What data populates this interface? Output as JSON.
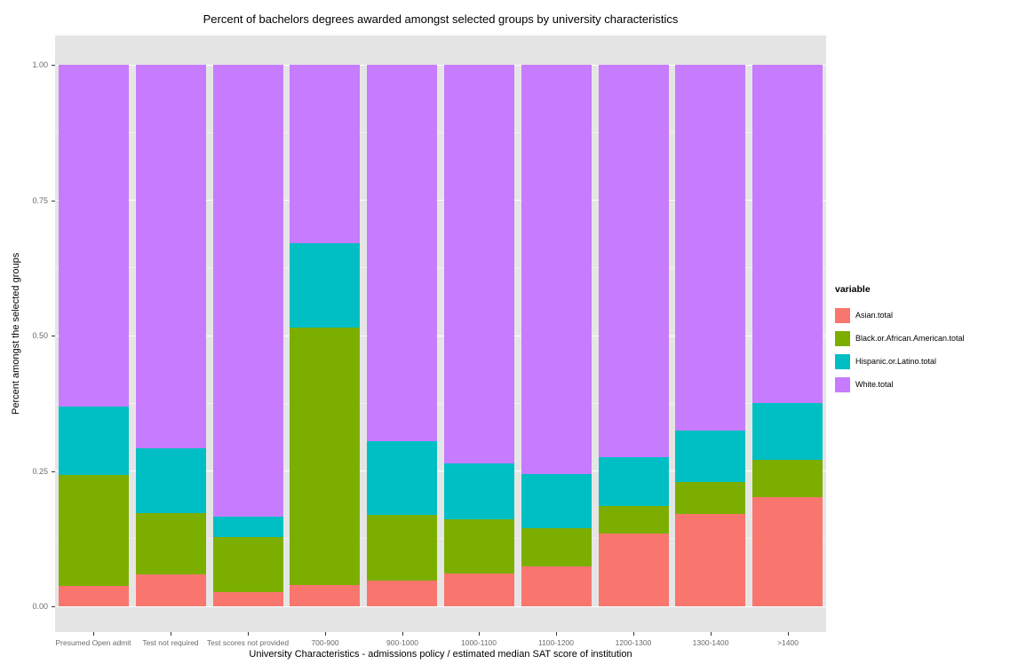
{
  "title": "Percent of bachelors degrees awarded amongst selected groups by university characteristics",
  "y_axis": {
    "label": "Percent amongst the selected groups",
    "ticks": [
      "0.00",
      "0.25",
      "0.50",
      "0.75",
      "1.00"
    ]
  },
  "x_axis": {
    "label": "University Characteristics - admissions policy / estimated median SAT score of institution"
  },
  "legend": {
    "title": "variable",
    "items": [
      {
        "label": "Asian.total",
        "color": "#F8766D"
      },
      {
        "label": "Black.or.African.American.total",
        "color": "#7CAE00"
      },
      {
        "label": "Hispanic.or.Latino.total",
        "color": "#00BFC4"
      },
      {
        "label": "White.total",
        "color": "#C77CFF"
      }
    ]
  },
  "chart_data": {
    "type": "bar",
    "stacked": true,
    "title": "Percent of bachelors degrees awarded amongst selected groups by university characteristics",
    "xlabel": "University Characteristics - admissions policy / estimated median SAT score of institution",
    "ylabel": "Percent amongst the selected groups",
    "ylim": [
      0,
      1
    ],
    "y_ticks": [
      0,
      0.25,
      0.5,
      0.75,
      1.0
    ],
    "y_minor": [
      0.125,
      0.375,
      0.625,
      0.875
    ],
    "grid": true,
    "legend_position": "right",
    "panel_background": "#e5e5e5",
    "categories": [
      "Presumed Open admit",
      "Test not required",
      "Test scores not provided",
      "700-900",
      "900-1000",
      "1000-1100",
      "1100-1200",
      "1200-1300",
      "1300-1400",
      ">1400"
    ],
    "series": [
      {
        "name": "Asian.total",
        "color": "#F8766D",
        "values": [
          0.037,
          0.059,
          0.027,
          0.039,
          0.048,
          0.061,
          0.074,
          0.135,
          0.171,
          0.202
        ]
      },
      {
        "name": "Black.or.African.American.total",
        "color": "#7CAE00",
        "values": [
          0.205,
          0.113,
          0.101,
          0.476,
          0.121,
          0.099,
          0.071,
          0.05,
          0.059,
          0.068
        ]
      },
      {
        "name": "Hispanic.or.Latino.total",
        "color": "#00BFC4",
        "values": [
          0.127,
          0.12,
          0.037,
          0.156,
          0.136,
          0.104,
          0.099,
          0.09,
          0.095,
          0.105
        ]
      },
      {
        "name": "White.total",
        "color": "#C77CFF",
        "values": [
          0.631,
          0.708,
          0.835,
          0.329,
          0.695,
          0.736,
          0.756,
          0.725,
          0.675,
          0.625
        ]
      }
    ]
  }
}
